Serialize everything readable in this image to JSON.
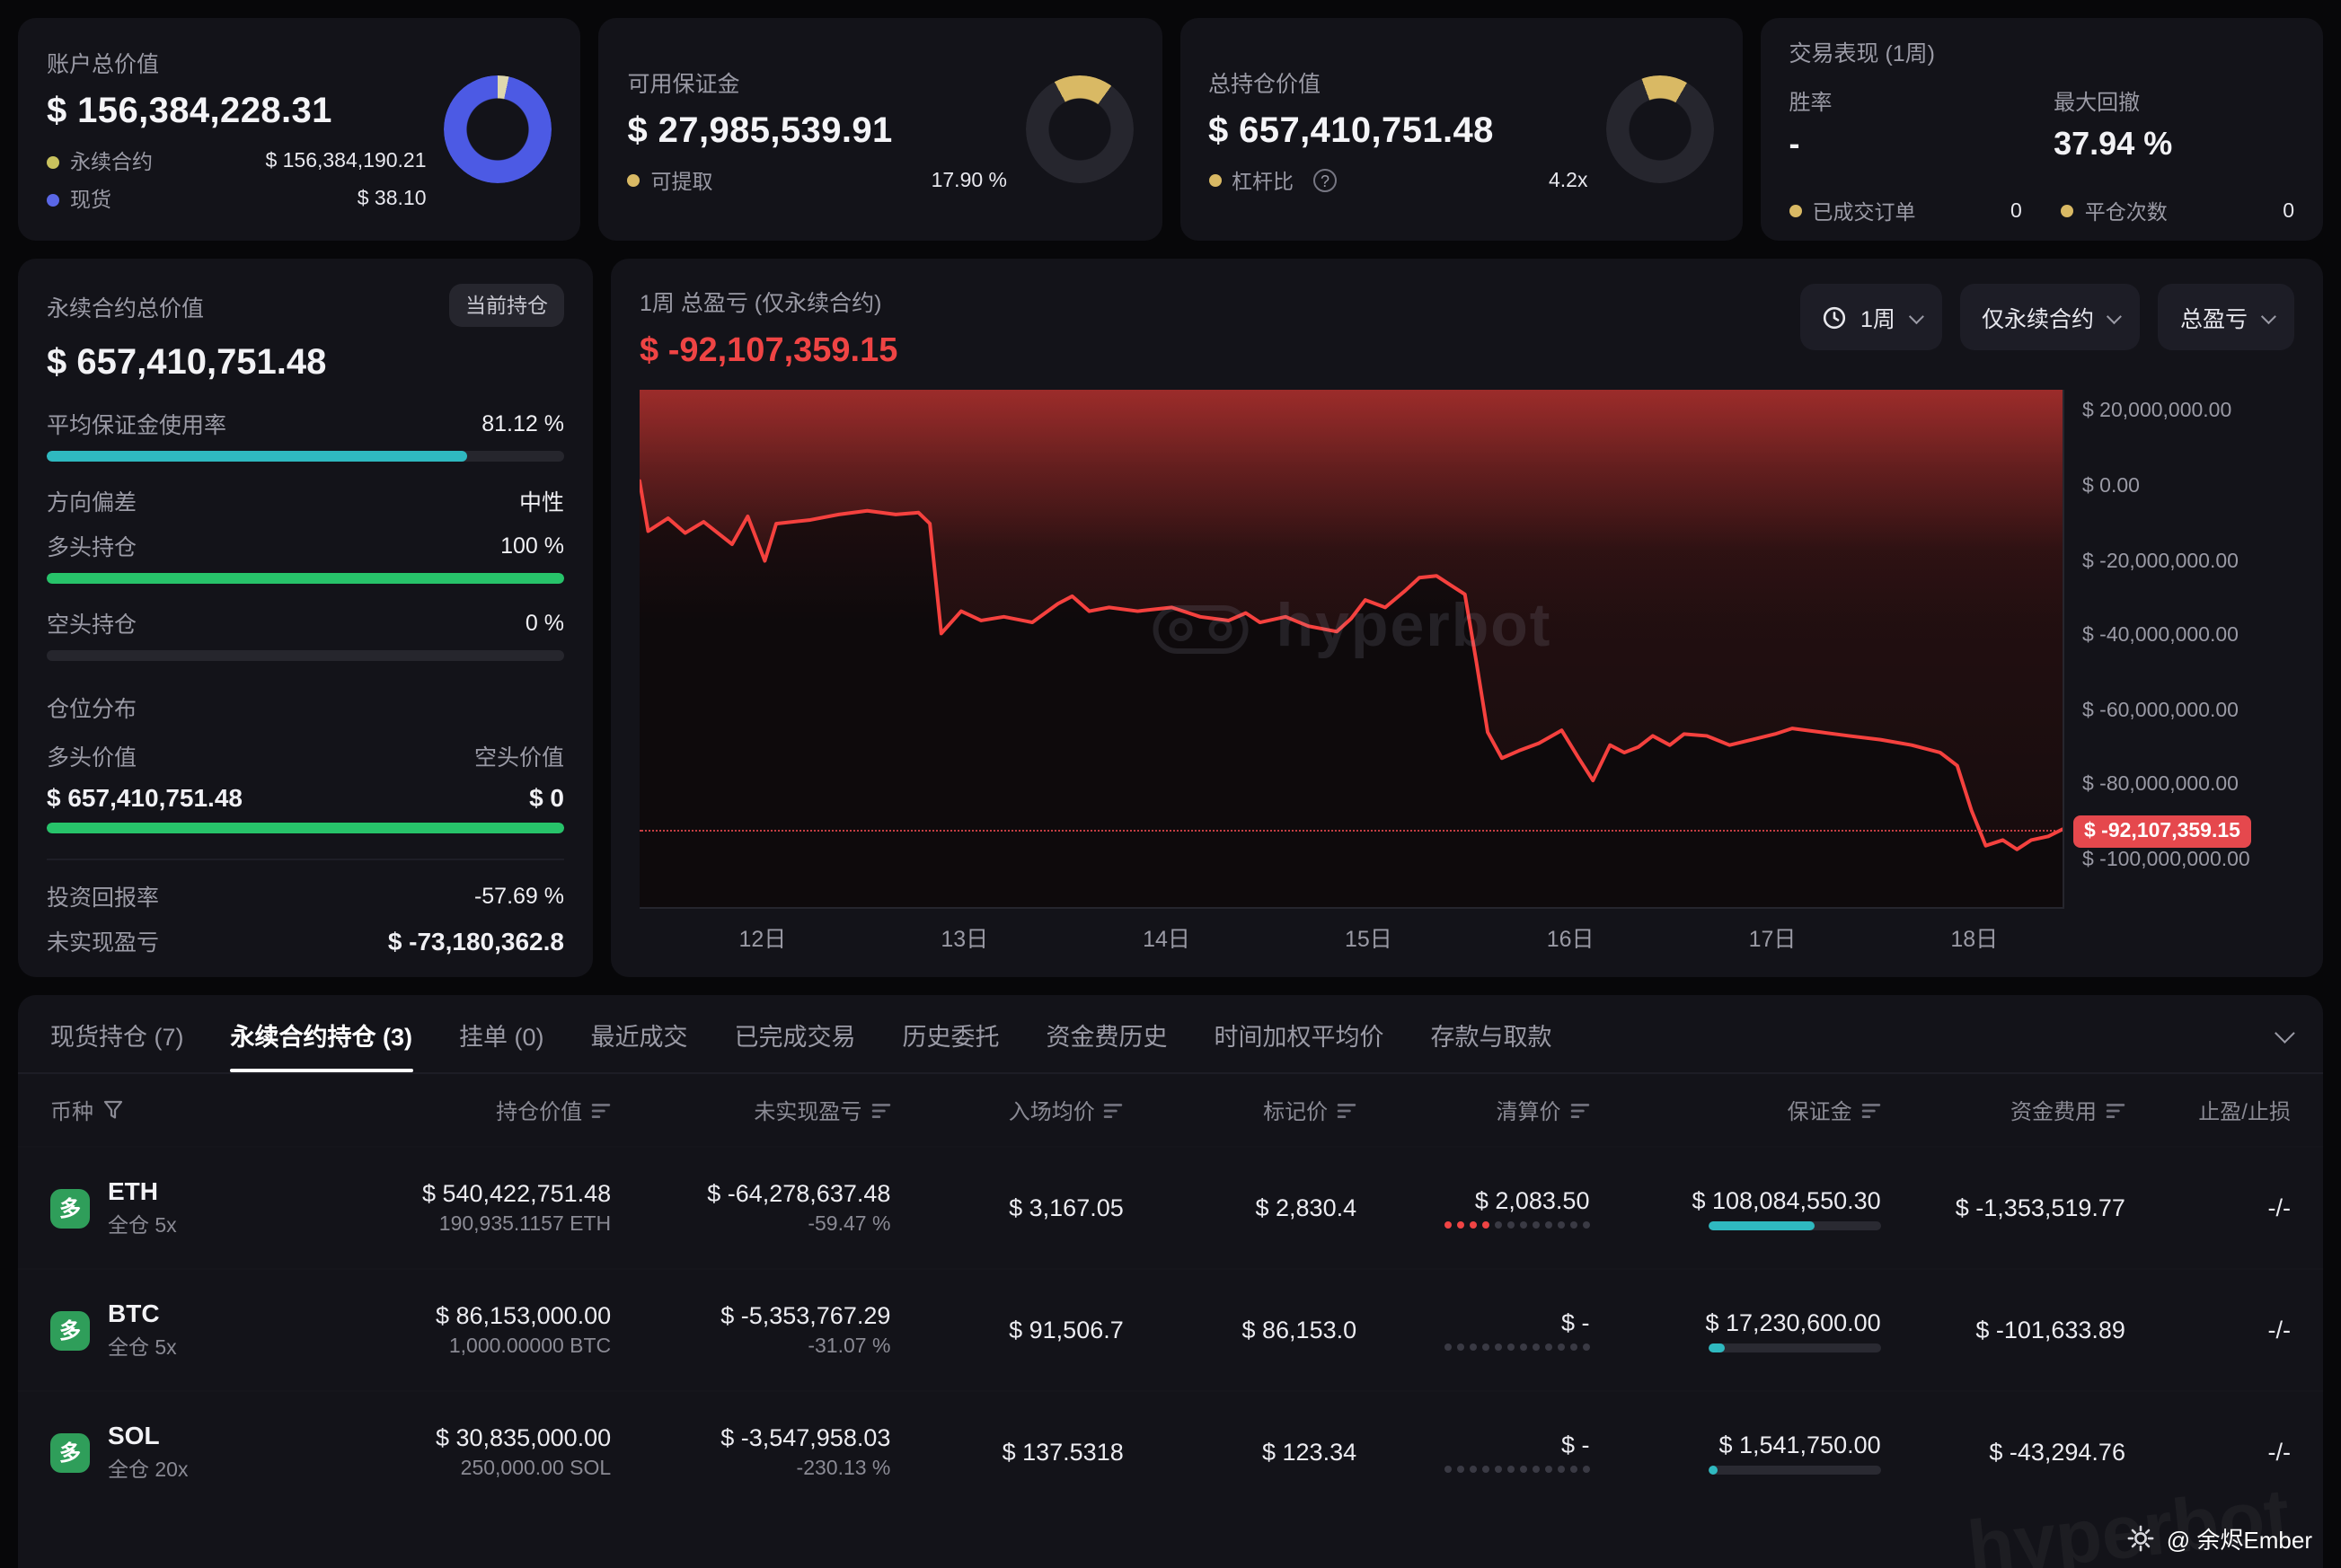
{
  "watermark": "hyperbot",
  "cards": {
    "account": {
      "title": "账户总价值",
      "value": "$ 156,384,228.31",
      "legend": [
        {
          "label": "永续合约",
          "value": "$ 156,384,190.21",
          "color": "#c9c25e"
        },
        {
          "label": "现货",
          "value": "$ 38.10",
          "color": "#5a67e6"
        }
      ]
    },
    "margin": {
      "title": "可用保证金",
      "value": "$ 27,985,539.91",
      "row_label": "可提取",
      "row_value": "17.90 %"
    },
    "position": {
      "title": "总持仓价值",
      "value": "$ 657,410,751.48",
      "row_label": "杠杆比",
      "row_value": "4.2x"
    },
    "performance": {
      "title": "交易表现 (1周)",
      "win_rate_label": "胜率",
      "win_rate_value": "-",
      "drawdown_label": "最大回撤",
      "drawdown_value": "37.94 %",
      "filled_label": "已成交订单",
      "filled_value": "0",
      "closed_label": "平仓次数",
      "closed_value": "0"
    }
  },
  "perp": {
    "title": "永续合约总价值",
    "badge": "当前持仓",
    "value": "$ 657,410,751.48",
    "rows": {
      "usage_label": "平均保证金使用率",
      "usage_value": "81.12 %",
      "usage_pct": 81.12,
      "bias_label": "方向偏差",
      "bias_value": "中性",
      "long_label": "多头持仓",
      "long_value": "100 %",
      "long_pct": 100,
      "short_label": "空头持仓",
      "short_value": "0 %",
      "short_pct": 0
    },
    "dist": {
      "title": "仓位分布",
      "long_label": "多头价值",
      "short_label": "空头价值",
      "long_value": "$ 657,410,751.48",
      "short_value": "$ 0",
      "long_pct": 100
    },
    "roi_label": "投资回报率",
    "roi_value": "-57.69 %",
    "upnl_label": "未实现盈亏",
    "upnl_value": "$ -73,180,362.8"
  },
  "chart": {
    "title": "1周 总盈亏 (仅永续合约)",
    "value": "$ -92,107,359.15",
    "controls": [
      {
        "label": "1周"
      },
      {
        "label": "仅永续合约"
      },
      {
        "label": "总盈亏"
      }
    ],
    "x_labels": [
      "12日",
      "13日",
      "14日",
      "15日",
      "16日",
      "17日",
      "18日"
    ],
    "axis": {
      "top_m": 26,
      "bottom_m": -113,
      "ticks": [
        {
          "v": 20,
          "label": "$ 20,000,000.00"
        },
        {
          "v": 0,
          "label": "$ 0.00"
        },
        {
          "v": -20,
          "label": "$ -20,000,000.00"
        },
        {
          "v": -40,
          "label": "$ -40,000,000.00"
        },
        {
          "v": -60,
          "label": "$ -60,000,000.00"
        },
        {
          "v": -80,
          "label": "$ -80,000,000.00"
        },
        {
          "v": -100,
          "label": "$ -100,000,000.00"
        }
      ]
    },
    "current_m": -92.107359,
    "current_label": "$ -92,107,359.15",
    "line_color": "#f5413e",
    "points": [
      [
        0,
        1.5
      ],
      [
        0.6,
        -12
      ],
      [
        2,
        -8.5
      ],
      [
        3.2,
        -12.5
      ],
      [
        4.5,
        -9.5
      ],
      [
        6.5,
        -15.5
      ],
      [
        7.6,
        -8
      ],
      [
        8.8,
        -20
      ],
      [
        9.6,
        -10
      ],
      [
        12,
        -9
      ],
      [
        14,
        -7.5
      ],
      [
        16,
        -6.5
      ],
      [
        18,
        -7.5
      ],
      [
        19.6,
        -7
      ],
      [
        20.4,
        -10
      ],
      [
        21.2,
        -39.5
      ],
      [
        22.6,
        -33.5
      ],
      [
        24,
        -36
      ],
      [
        25.6,
        -35
      ],
      [
        27.6,
        -36.5
      ],
      [
        29.4,
        -31.5
      ],
      [
        30.4,
        -29.5
      ],
      [
        31.6,
        -33.5
      ],
      [
        33,
        -32.5
      ],
      [
        35,
        -33.5
      ],
      [
        37.4,
        -32.5
      ],
      [
        39.4,
        -35
      ],
      [
        41.4,
        -36
      ],
      [
        42.6,
        -34
      ],
      [
        43.6,
        -36.5
      ],
      [
        45.4,
        -35
      ],
      [
        47,
        -37.5
      ],
      [
        49,
        -39
      ],
      [
        50,
        -35.5
      ],
      [
        51,
        -30.5
      ],
      [
        52.4,
        -32.5
      ],
      [
        53.8,
        -28
      ],
      [
        54.8,
        -24.5
      ],
      [
        56,
        -24
      ],
      [
        57,
        -26.5
      ],
      [
        58,
        -29
      ],
      [
        58.8,
        -47
      ],
      [
        59.6,
        -66
      ],
      [
        60.6,
        -73
      ],
      [
        61.8,
        -71
      ],
      [
        63.2,
        -69
      ],
      [
        64.8,
        -65.5
      ],
      [
        66,
        -73
      ],
      [
        67,
        -79
      ],
      [
        68.2,
        -69.5
      ],
      [
        69.2,
        -71.5
      ],
      [
        70.2,
        -70
      ],
      [
        71.2,
        -67
      ],
      [
        72.4,
        -69.5
      ],
      [
        73.4,
        -66.5
      ],
      [
        75,
        -67
      ],
      [
        76.6,
        -69.5
      ],
      [
        78.2,
        -68
      ],
      [
        79.8,
        -66.5
      ],
      [
        81,
        -65
      ],
      [
        83,
        -66
      ],
      [
        85,
        -67
      ],
      [
        87.2,
        -68
      ],
      [
        89.4,
        -69.5
      ],
      [
        91.4,
        -71.5
      ],
      [
        92.6,
        -75
      ],
      [
        93.6,
        -87
      ],
      [
        94.6,
        -96.5
      ],
      [
        95.8,
        -95
      ],
      [
        96.8,
        -97.5
      ],
      [
        97.8,
        -95
      ],
      [
        99,
        -94
      ],
      [
        100,
        -92.1
      ]
    ]
  },
  "tabs": {
    "items": [
      {
        "label": "现货持仓 (7)"
      },
      {
        "label": "永续合约持仓 (3)"
      },
      {
        "label": "挂单 (0)"
      },
      {
        "label": "最近成交"
      },
      {
        "label": "已完成交易"
      },
      {
        "label": "历史委托"
      },
      {
        "label": "资金费历史"
      },
      {
        "label": "时间加权平均价"
      },
      {
        "label": "存款与取款"
      }
    ]
  },
  "table": {
    "headers": [
      "币种",
      "持仓价值",
      "未实现盈亏",
      "入场均价",
      "标记价",
      "清算价",
      "保证金",
      "资金费用",
      "止盈/止损"
    ],
    "rows": [
      {
        "side": "多",
        "symbol": "ETH",
        "mode": "全仓 5x",
        "value": "$ 540,422,751.48",
        "qty": "190,935.1157 ETH",
        "pnl": "$ -64,278,637.48",
        "pnl_pct": "-59.47 %",
        "entry": "$ 3,167.05",
        "mark": "$ 2,830.4",
        "liq": "$ 2,083.50",
        "liq_dots": {
          "red": 4,
          "total": 12
        },
        "margin": "$ 108,084,550.30",
        "margin_bar_pct": 62,
        "funding": "$ -1,353,519.77",
        "tpsl": "-/-"
      },
      {
        "side": "多",
        "symbol": "BTC",
        "mode": "全仓 5x",
        "value": "$ 86,153,000.00",
        "qty": "1,000.00000 BTC",
        "pnl": "$ -5,353,767.29",
        "pnl_pct": "-31.07 %",
        "entry": "$ 91,506.7",
        "mark": "$ 86,153.0",
        "liq": "$ -",
        "liq_dots": {
          "red": 0,
          "total": 12
        },
        "margin": "$ 17,230,600.00",
        "margin_bar_pct": 10,
        "funding": "$ -101,633.89",
        "tpsl": "-/-"
      },
      {
        "side": "多",
        "symbol": "SOL",
        "mode": "全仓 20x",
        "value": "$ 30,835,000.00",
        "qty": "250,000.00 SOL",
        "pnl": "$ -3,547,958.03",
        "pnl_pct": "-230.13 %",
        "entry": "$ 137.5318",
        "mark": "$ 123.34",
        "liq": "$ -",
        "liq_dots": {
          "red": 0,
          "total": 12
        },
        "margin": "$ 1,541,750.00",
        "margin_bar_pct": 5,
        "funding": "$ -43,294.76",
        "tpsl": "-/-"
      }
    ]
  },
  "footer": {
    "credit": "@ 余烬Ember"
  }
}
